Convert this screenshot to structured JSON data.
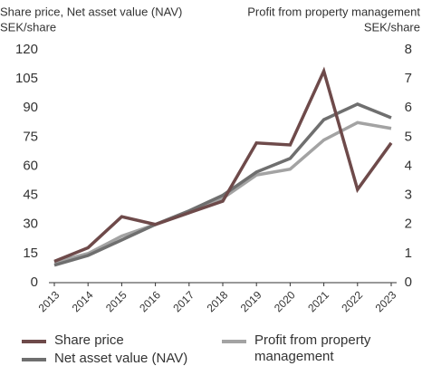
{
  "chart_data": {
    "type": "line",
    "ylabel": "Share price, Net asset value (NAV)",
    "ylabel_unit": "SEK/share",
    "y2label": "Profit from property management",
    "y2label_unit": "SEK/share",
    "categories": [
      "2013",
      "2014",
      "2015",
      "2016",
      "2017",
      "2018",
      "2019",
      "2020",
      "2021",
      "2022",
      "2023"
    ],
    "series": [
      {
        "name": "Share price",
        "color": "#6e4a4a",
        "values": [
          11,
          18,
          34,
          30,
          36,
          42,
          72,
          71,
          109,
          48,
          72
        ]
      },
      {
        "name": "Net asset value (NAV)",
        "color": "#6f6f6f",
        "values": [
          9,
          14,
          22,
          30,
          37,
          45,
          57,
          64,
          84,
          92,
          85
        ]
      },
      {
        "name": "Profit from property management",
        "color": "#a3a3a3",
        "axis": "y2",
        "values": [
          0.7,
          1.0,
          1.6,
          2.0,
          2.4,
          2.9,
          3.7,
          3.9,
          4.9,
          5.5,
          5.3
        ]
      }
    ],
    "ylim": [
      0,
      120
    ],
    "yticks": [
      0,
      15,
      30,
      45,
      60,
      75,
      90,
      105,
      120
    ],
    "y2lim": [
      0,
      8
    ],
    "y2ticks": [
      0,
      1,
      2,
      3,
      4,
      5,
      6,
      7,
      8
    ],
    "grid": false
  }
}
